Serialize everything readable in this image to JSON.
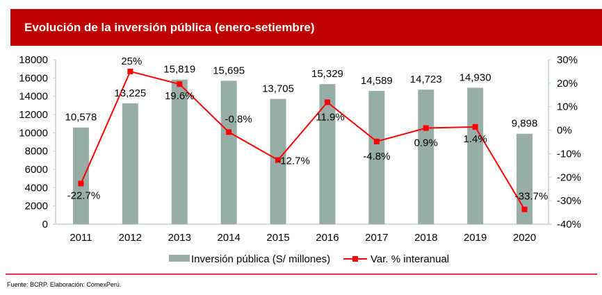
{
  "header": {
    "title": "Evolución de la inversión pública (enero-setiembre)"
  },
  "footer": {
    "source": "Fuente: BCRP. Elaboración: ComexPerú."
  },
  "colors": {
    "bar": "#98aca8",
    "line": "#ff0000",
    "title_bg": "#c00000",
    "axis": "#c8d4d2"
  },
  "chart_data": {
    "type": "bar",
    "title": "Evolución de la inversión pública (enero-setiembre)",
    "categories": [
      "2011",
      "2012",
      "2013",
      "2014",
      "2015",
      "2016",
      "2017",
      "2018",
      "2019",
      "2020"
    ],
    "series": [
      {
        "name": "Inversión pública (S/ millones)",
        "type": "bar",
        "axis": "left",
        "values": [
          10578,
          13225,
          15819,
          15695,
          13705,
          15329,
          14589,
          14723,
          14930,
          9898
        ],
        "labels": [
          "10,578",
          "13,225",
          "15,819",
          "15,695",
          "13,705",
          "15,329",
          "14,589",
          "14,723",
          "14,930",
          "9,898"
        ]
      },
      {
        "name": "Var. % interanual",
        "type": "line",
        "axis": "right",
        "values": [
          -22.7,
          25,
          19.6,
          -0.8,
          -12.7,
          11.9,
          -4.8,
          0.9,
          1.4,
          -33.7
        ],
        "labels": [
          "-22.7%",
          "25%",
          "19.6%",
          "-0.8%",
          "-12.7%",
          "11.9%",
          "-4.8%",
          "0.9%",
          "1.4%",
          "-33.7%"
        ]
      }
    ],
    "y_left": {
      "range": [
        0,
        18000
      ],
      "ticks": [
        "0",
        "2000",
        "4000",
        "6000",
        "8000",
        "10000",
        "12000",
        "14000",
        "16000",
        "18000"
      ]
    },
    "y_right": {
      "range": [
        -40,
        30
      ],
      "ticks": [
        "-40%",
        "-30%",
        "-20%",
        "-10%",
        "0%",
        "10%",
        "20%",
        "30%"
      ]
    },
    "xlabel": "",
    "ylabel": "",
    "grid": false,
    "legend": {
      "position": "bottom",
      "entries": [
        "Inversión pública (S/ millones)",
        "Var. % interanual"
      ]
    }
  }
}
